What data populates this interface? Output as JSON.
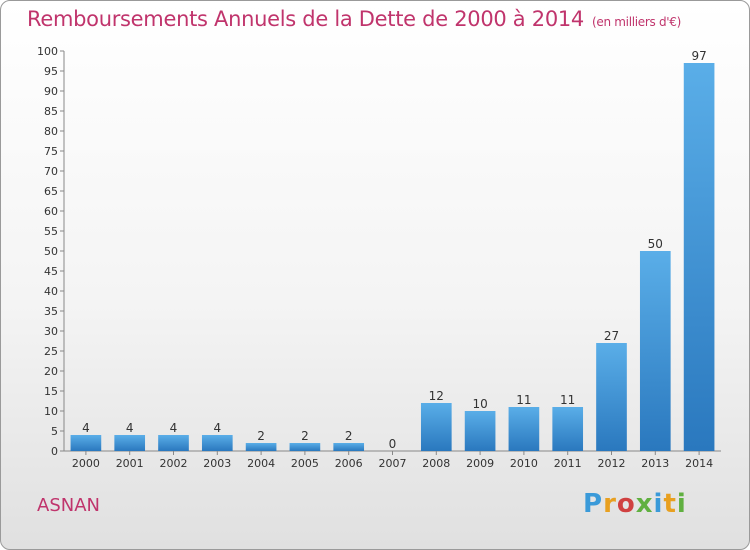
{
  "chart_data": {
    "type": "bar",
    "title": "Remboursements Annuels de la Dette de 2000 à 2014",
    "unit_note": "(en milliers d'€)",
    "categories": [
      "2000",
      "2001",
      "2002",
      "2003",
      "2004",
      "2005",
      "2006",
      "2007",
      "2008",
      "2009",
      "2010",
      "2011",
      "2012",
      "2013",
      "2014"
    ],
    "values": [
      4,
      4,
      4,
      4,
      2,
      2,
      2,
      0,
      12,
      10,
      11,
      11,
      27,
      50,
      97
    ],
    "ylim": [
      0,
      100
    ],
    "ytick_step": 5,
    "grid": false,
    "bar_color": "#3a8fd6"
  },
  "footer": {
    "commune": "ASNAN",
    "logo": "Proxiti"
  }
}
